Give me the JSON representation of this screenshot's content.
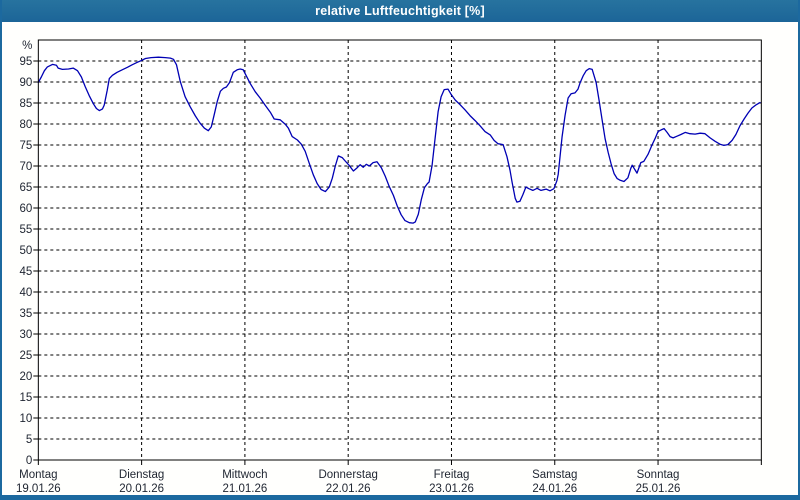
{
  "window": {
    "title": "relative Luftfeuchtigkeit [%]"
  },
  "colors": {
    "titlebar": "#1c699f",
    "frame": "#1c699f",
    "line": "#0000b4",
    "grid": "#000000",
    "plot_border": "#000000",
    "label": "#1e2430",
    "plot_bg": "#ffffff"
  },
  "chart_data": {
    "type": "line",
    "title": "relative Luftfeuchtigkeit [%]",
    "ylabel": "%",
    "y_top_label": "%",
    "ylim": [
      0,
      100
    ],
    "yticks": [
      0,
      5,
      10,
      15,
      20,
      25,
      30,
      35,
      40,
      45,
      50,
      55,
      60,
      65,
      70,
      75,
      80,
      85,
      90,
      95
    ],
    "grid": true,
    "x_unit": "hours_since_monday_00",
    "xlim": [
      0,
      168
    ],
    "days": [
      {
        "name": "Montag",
        "date": "19.01.26"
      },
      {
        "name": "Dienstag",
        "date": "20.01.26"
      },
      {
        "name": "Mittwoch",
        "date": "21.01.26"
      },
      {
        "name": "Donnerstag",
        "date": "22.01.26"
      },
      {
        "name": "Freitag",
        "date": "23.01.26"
      },
      {
        "name": "Samstag",
        "date": "24.01.26"
      },
      {
        "name": "Sonntag",
        "date": "25.01.26"
      }
    ],
    "series": [
      {
        "name": "relative Luftfeuchtigkeit",
        "points": [
          [
            0,
            89.9
          ],
          [
            0.7,
            91.2
          ],
          [
            1.4,
            92.7
          ],
          [
            2.1,
            93.6
          ],
          [
            3.3,
            94.2
          ],
          [
            4.2,
            94.0
          ],
          [
            4.6,
            93.3
          ],
          [
            5.6,
            93.0
          ],
          [
            7.0,
            93.1
          ],
          [
            8.1,
            93.3
          ],
          [
            9.1,
            92.7
          ],
          [
            10.0,
            91.2
          ],
          [
            10.9,
            88.9
          ],
          [
            11.8,
            86.8
          ],
          [
            12.8,
            84.8
          ],
          [
            13.5,
            83.7
          ],
          [
            14.2,
            83.2
          ],
          [
            14.9,
            83.6
          ],
          [
            15.3,
            84.5
          ],
          [
            16.0,
            88.0
          ],
          [
            16.5,
            90.8
          ],
          [
            17.2,
            91.6
          ],
          [
            18.3,
            92.3
          ],
          [
            19.5,
            92.9
          ],
          [
            20.7,
            93.5
          ],
          [
            21.8,
            94.1
          ],
          [
            23.0,
            94.7
          ],
          [
            23.9,
            95.1
          ],
          [
            24.9,
            95.6
          ],
          [
            26.2,
            95.8
          ],
          [
            27.9,
            95.9
          ],
          [
            29.5,
            95.8
          ],
          [
            30.7,
            95.7
          ],
          [
            31.4,
            95.4
          ],
          [
            32.1,
            94.1
          ],
          [
            33.0,
            90.1
          ],
          [
            34.1,
            86.5
          ],
          [
            35.3,
            84.1
          ],
          [
            36.5,
            81.9
          ],
          [
            37.6,
            80.2
          ],
          [
            38.6,
            79.0
          ],
          [
            39.5,
            78.4
          ],
          [
            40.2,
            79.3
          ],
          [
            40.9,
            82.3
          ],
          [
            41.6,
            85.5
          ],
          [
            42.3,
            87.8
          ],
          [
            43.0,
            88.5
          ],
          [
            43.7,
            88.8
          ],
          [
            44.4,
            89.8
          ],
          [
            45.3,
            92.3
          ],
          [
            46.2,
            92.9
          ],
          [
            46.9,
            93.1
          ],
          [
            47.6,
            92.9
          ],
          [
            48.3,
            91.5
          ],
          [
            49.2,
            89.7
          ],
          [
            50.4,
            87.7
          ],
          [
            51.6,
            86.1
          ],
          [
            52.7,
            84.5
          ],
          [
            53.9,
            82.8
          ],
          [
            54.8,
            81.2
          ],
          [
            56.2,
            81.0
          ],
          [
            57.4,
            79.9
          ],
          [
            58.1,
            79.0
          ],
          [
            59.0,
            77.0
          ],
          [
            60.2,
            76.2
          ],
          [
            61.1,
            75.2
          ],
          [
            62.0,
            73.5
          ],
          [
            62.9,
            70.8
          ],
          [
            63.9,
            67.9
          ],
          [
            64.8,
            65.8
          ],
          [
            65.7,
            64.4
          ],
          [
            66.7,
            63.9
          ],
          [
            67.6,
            65.0
          ],
          [
            68.3,
            67.1
          ],
          [
            69.0,
            70.0
          ],
          [
            69.7,
            72.4
          ],
          [
            70.6,
            72.0
          ],
          [
            71.3,
            71.2
          ],
          [
            72.2,
            70.2
          ],
          [
            73.2,
            68.8
          ],
          [
            74.1,
            69.6
          ],
          [
            74.8,
            70.3
          ],
          [
            75.5,
            69.7
          ],
          [
            76.2,
            70.4
          ],
          [
            76.9,
            70.0
          ],
          [
            77.8,
            70.8
          ],
          [
            78.7,
            71.0
          ],
          [
            79.7,
            69.6
          ],
          [
            80.6,
            67.6
          ],
          [
            81.5,
            65.2
          ],
          [
            82.5,
            63.0
          ],
          [
            83.4,
            60.5
          ],
          [
            84.3,
            58.4
          ],
          [
            85.2,
            57.0
          ],
          [
            86.2,
            56.5
          ],
          [
            87.1,
            56.4
          ],
          [
            87.6,
            56.7
          ],
          [
            88.3,
            58.5
          ],
          [
            89.0,
            62.0
          ],
          [
            89.7,
            64.8
          ],
          [
            90.4,
            65.8
          ],
          [
            90.8,
            66.2
          ],
          [
            91.5,
            70.2
          ],
          [
            92.2,
            76.6
          ],
          [
            92.9,
            82.9
          ],
          [
            93.6,
            86.5
          ],
          [
            94.3,
            88.2
          ],
          [
            95.2,
            88.3
          ],
          [
            95.9,
            87.1
          ],
          [
            96.9,
            85.7
          ],
          [
            98.0,
            84.6
          ],
          [
            99.2,
            83.3
          ],
          [
            100.3,
            82.0
          ],
          [
            101.5,
            80.8
          ],
          [
            102.7,
            79.5
          ],
          [
            103.8,
            78.2
          ],
          [
            105.0,
            77.4
          ],
          [
            105.9,
            76.1
          ],
          [
            106.8,
            75.3
          ],
          [
            108.0,
            75.1
          ],
          [
            108.9,
            72.2
          ],
          [
            109.6,
            69.0
          ],
          [
            110.1,
            66.0
          ],
          [
            110.8,
            62.3
          ],
          [
            111.2,
            61.4
          ],
          [
            111.9,
            61.6
          ],
          [
            112.6,
            63.2
          ],
          [
            113.3,
            65.0
          ],
          [
            114.0,
            64.6
          ],
          [
            114.9,
            64.2
          ],
          [
            115.9,
            64.7
          ],
          [
            116.8,
            64.2
          ],
          [
            118.0,
            64.5
          ],
          [
            118.9,
            64.1
          ],
          [
            119.8,
            64.6
          ],
          [
            120.5,
            66.5
          ],
          [
            120.8,
            68.0
          ],
          [
            121.7,
            77.0
          ],
          [
            122.4,
            82.1
          ],
          [
            123.1,
            86.2
          ],
          [
            123.8,
            87.2
          ],
          [
            124.7,
            87.4
          ],
          [
            125.4,
            88.3
          ],
          [
            125.9,
            89.8
          ],
          [
            126.6,
            91.5
          ],
          [
            127.3,
            92.7
          ],
          [
            128.0,
            93.2
          ],
          [
            128.7,
            93.0
          ],
          [
            129.6,
            89.9
          ],
          [
            130.3,
            85.6
          ],
          [
            131.0,
            81.0
          ],
          [
            131.7,
            76.5
          ],
          [
            132.4,
            73.3
          ],
          [
            133.1,
            70.5
          ],
          [
            133.8,
            68.2
          ],
          [
            134.5,
            67.0
          ],
          [
            135.2,
            66.6
          ],
          [
            136.1,
            66.3
          ],
          [
            137.0,
            67.2
          ],
          [
            137.7,
            69.5
          ],
          [
            138.0,
            70.2
          ],
          [
            139.1,
            68.3
          ],
          [
            140.0,
            70.8
          ],
          [
            140.7,
            71.1
          ],
          [
            141.7,
            72.8
          ],
          [
            142.6,
            75.0
          ],
          [
            143.3,
            76.5
          ],
          [
            144.0,
            78.2
          ],
          [
            144.7,
            78.6
          ],
          [
            145.4,
            78.9
          ],
          [
            146.1,
            78.0
          ],
          [
            146.8,
            77.0
          ],
          [
            147.5,
            76.7
          ],
          [
            148.4,
            77.1
          ],
          [
            149.3,
            77.5
          ],
          [
            150.3,
            78.0
          ],
          [
            151.4,
            77.7
          ],
          [
            152.6,
            77.6
          ],
          [
            153.8,
            77.8
          ],
          [
            154.9,
            77.7
          ],
          [
            156.1,
            76.7
          ],
          [
            157.2,
            75.9
          ],
          [
            158.4,
            75.2
          ],
          [
            159.3,
            74.9
          ],
          [
            160.2,
            75.1
          ],
          [
            161.2,
            76.1
          ],
          [
            162.1,
            77.5
          ],
          [
            163.0,
            79.5
          ],
          [
            164.0,
            81.2
          ],
          [
            164.9,
            82.6
          ],
          [
            165.8,
            83.8
          ],
          [
            166.7,
            84.5
          ],
          [
            167.7,
            85.1
          ]
        ]
      }
    ]
  }
}
